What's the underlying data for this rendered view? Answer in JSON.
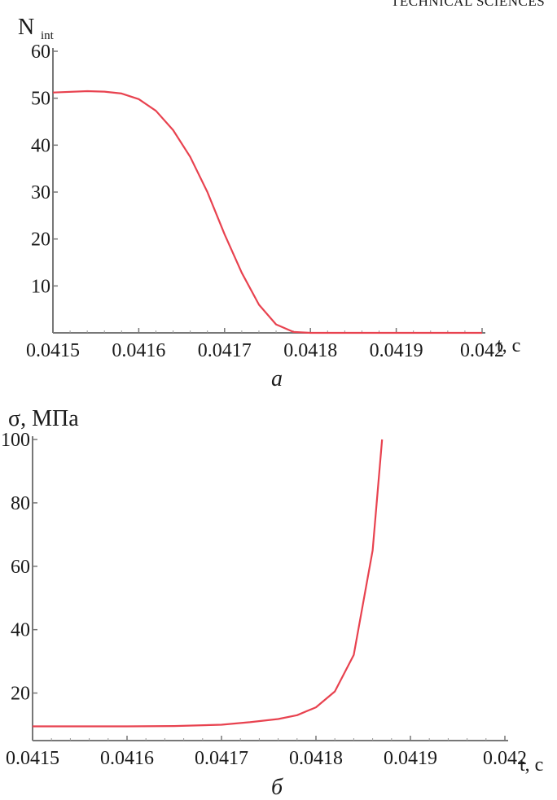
{
  "page_header": "TECHNICAL SCIENCES",
  "chart_data": [
    {
      "type": "line",
      "caption": "а",
      "ylabel_main": "N",
      "ylabel_sub": "int",
      "xlabel": "t, c",
      "xlim": [
        0.0415,
        0.042
      ],
      "ylim": [
        0,
        60
      ],
      "x_ticks": [
        "0.0415",
        "0.0416",
        "0.0417",
        "0.0418",
        "0.0419",
        "0.042"
      ],
      "y_ticks": [
        "10",
        "20",
        "30",
        "40",
        "50",
        "60"
      ],
      "line_color": "#e8424f",
      "series": [
        {
          "x": [
            0.0415,
            0.04154,
            0.04156,
            0.04158,
            0.0416,
            0.04162,
            0.04164,
            0.04166,
            0.04168,
            0.0417,
            0.04172,
            0.04174,
            0.04176,
            0.04178,
            0.0418,
            0.0419,
            0.042
          ],
          "y": [
            51.2,
            51.5,
            51.4,
            51.0,
            49.8,
            47.3,
            43.2,
            37.5,
            30.0,
            21.0,
            12.8,
            6.0,
            1.8,
            0.2,
            0,
            0,
            0
          ]
        }
      ]
    },
    {
      "type": "line",
      "caption": "б",
      "ylabel_main": "σ, МПа",
      "xlabel": "t, c",
      "xlim": [
        0.0415,
        0.042
      ],
      "ylim": [
        5,
        100
      ],
      "x_ticks": [
        "0.0415",
        "0.0416",
        "0.0417",
        "0.0418",
        "0.0419",
        "0.042"
      ],
      "y_ticks": [
        "20",
        "40",
        "60",
        "80",
        "100"
      ],
      "line_color": "#e8424f",
      "series": [
        {
          "x": [
            0.0415,
            0.04155,
            0.0416,
            0.04165,
            0.0417,
            0.04173,
            0.04176,
            0.04178,
            0.0418,
            0.04182,
            0.04184,
            0.04186,
            0.04187
          ],
          "y": [
            9.5,
            9.5,
            9.5,
            9.6,
            10.0,
            10.8,
            11.8,
            13.0,
            15.5,
            20.5,
            32.0,
            65.0,
            100.0
          ]
        }
      ]
    }
  ]
}
